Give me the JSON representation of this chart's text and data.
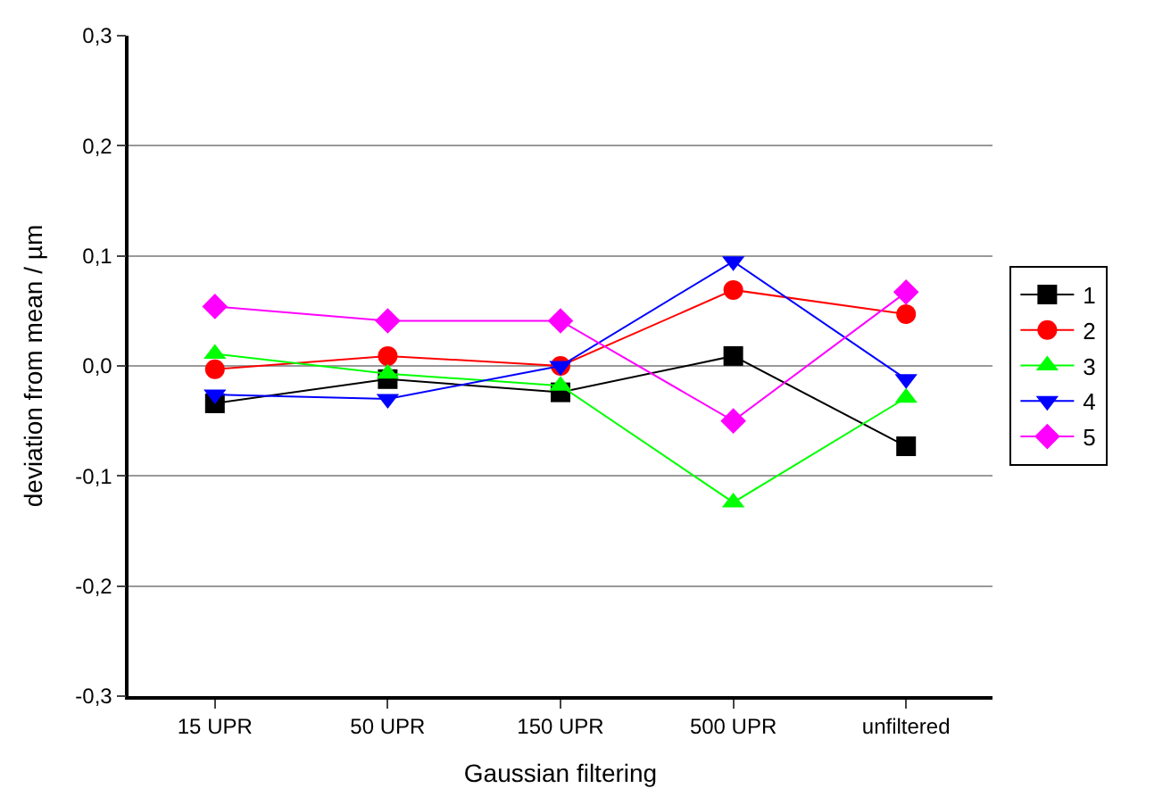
{
  "chart_data": {
    "type": "line",
    "xlabel": "Gaussian filtering",
    "ylabel": "deviation from mean / µm",
    "categories": [
      "15 UPR",
      "50 UPR",
      "150 UPR",
      "500 UPR",
      "unfiltered"
    ],
    "series": [
      {
        "name": "1",
        "color": "#000000",
        "marker": "square",
        "values": [
          -0.034,
          -0.012,
          -0.024,
          0.009,
          -0.073
        ]
      },
      {
        "name": "2",
        "color": "#ff0000",
        "marker": "circle",
        "values": [
          -0.003,
          0.009,
          0.0,
          0.069,
          0.047
        ]
      },
      {
        "name": "3",
        "color": "#00ff00",
        "marker": "triangle",
        "values": [
          0.011,
          -0.007,
          -0.018,
          -0.124,
          -0.029
        ]
      },
      {
        "name": "4",
        "color": "#0000ff",
        "marker": "triangle-down",
        "values": [
          -0.026,
          -0.03,
          0.0,
          0.095,
          -0.012
        ]
      },
      {
        "name": "5",
        "color": "#ff00ff",
        "marker": "diamond",
        "values": [
          0.054,
          0.041,
          0.041,
          -0.05,
          0.067
        ]
      }
    ],
    "ylim": [
      -0.3,
      0.3
    ],
    "yticks": [
      {
        "value": -0.3,
        "label": "-0,3"
      },
      {
        "value": -0.2,
        "label": "-0,2"
      },
      {
        "value": -0.1,
        "label": "-0,1"
      },
      {
        "value": 0.0,
        "label": "0,0"
      },
      {
        "value": 0.1,
        "label": "0,1"
      },
      {
        "value": 0.2,
        "label": "0,2"
      },
      {
        "value": 0.3,
        "label": "0,3"
      }
    ],
    "grid": "y",
    "legend": "right",
    "line_style": "solid"
  }
}
